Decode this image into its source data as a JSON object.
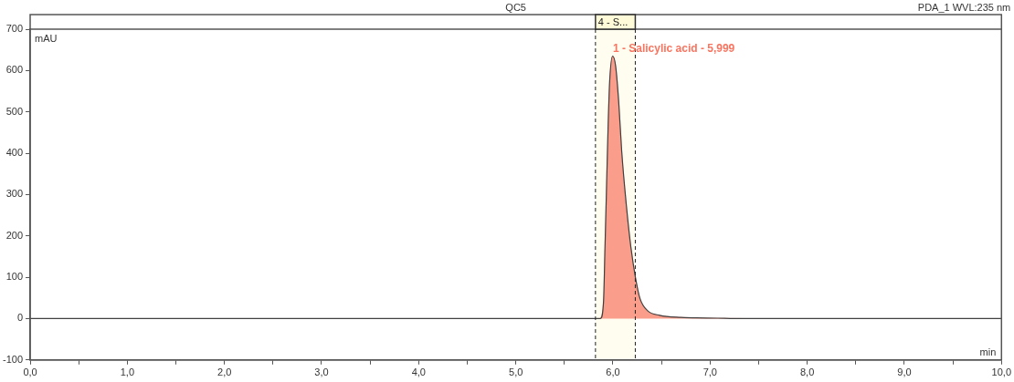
{
  "chart_data": {
    "type": "line",
    "title": "QC5",
    "subtitle": "PDA_1 WVL:235 nm",
    "xlabel": "min",
    "ylabel": "mAU",
    "xlim": [
      0,
      10
    ],
    "ylim": [
      -100,
      700
    ],
    "xticks": [
      {
        "value": 0,
        "label": "0,0"
      },
      {
        "value": 0.5,
        "label": null
      },
      {
        "value": 1,
        "label": "1,0"
      },
      {
        "value": 1.5,
        "label": null
      },
      {
        "value": 2,
        "label": "2,0"
      },
      {
        "value": 2.5,
        "label": null
      },
      {
        "value": 3,
        "label": "3,0"
      },
      {
        "value": 3.5,
        "label": null
      },
      {
        "value": 4,
        "label": "4,0"
      },
      {
        "value": 4.5,
        "label": null
      },
      {
        "value": 5,
        "label": "5,0"
      },
      {
        "value": 5.5,
        "label": null
      },
      {
        "value": 6,
        "label": "6,0"
      },
      {
        "value": 6.5,
        "label": null
      },
      {
        "value": 7,
        "label": "7,0"
      },
      {
        "value": 7.5,
        "label": null
      },
      {
        "value": 8,
        "label": "8,0"
      },
      {
        "value": 8.5,
        "label": null
      },
      {
        "value": 9,
        "label": "9,0"
      },
      {
        "value": 9.5,
        "label": null
      },
      {
        "value": 10,
        "label": "10,0"
      }
    ],
    "yticks": [
      -100,
      0,
      100,
      200,
      300,
      400,
      500,
      600,
      700
    ],
    "grid": false,
    "legend": false,
    "marker": "none",
    "line_style": "solid",
    "series": [
      {
        "type": "line",
        "color": "#404040",
        "x": [
          0,
          1,
          2,
          3,
          4,
          5,
          5.8,
          5.871,
          5.903,
          5.918,
          5.934,
          5.95,
          5.966,
          5.997,
          6.028,
          6.06,
          6.09,
          6.138,
          6.185,
          6.232,
          6.279,
          6.357,
          6.48,
          6.7,
          7.08,
          7.34,
          8,
          9,
          10
        ],
        "values": [
          0,
          0,
          0,
          0,
          0,
          0,
          0,
          0,
          41,
          172,
          318,
          464,
          573,
          635,
          610,
          522,
          405,
          274,
          172,
          99,
          48,
          19,
          8,
          3,
          1,
          0,
          0,
          0,
          0
        ]
      },
      {
        "type": "area",
        "color": "#fa9d8a",
        "x": [
          5.871,
          5.903,
          5.918,
          5.934,
          5.95,
          5.966,
          5.997,
          6.028,
          6.06,
          6.09,
          6.138,
          6.185,
          6.232,
          6.279,
          6.357,
          6.48,
          6.7,
          7.08,
          7.34
        ],
        "values": [
          0,
          41,
          172,
          318,
          464,
          573,
          635,
          610,
          522,
          405,
          274,
          172,
          99,
          48,
          19,
          8,
          3,
          1,
          0
        ]
      }
    ],
    "bands": [
      {
        "axis": "x",
        "from": 5.82,
        "to": 6.23,
        "label": "4 - S...",
        "color": "#fffdf0"
      }
    ],
    "ref_lines": [
      {
        "axis": "x",
        "value": 5.82,
        "label": null,
        "color": "#222222",
        "line_style": "dashed"
      },
      {
        "axis": "x",
        "value": 6.23,
        "label": null,
        "color": "#222222",
        "line_style": "dashed"
      }
    ],
    "annotations": [
      {
        "text": "1 - Salicylic acid - 5,999",
        "x": 5.999,
        "y": 635
      }
    ]
  }
}
